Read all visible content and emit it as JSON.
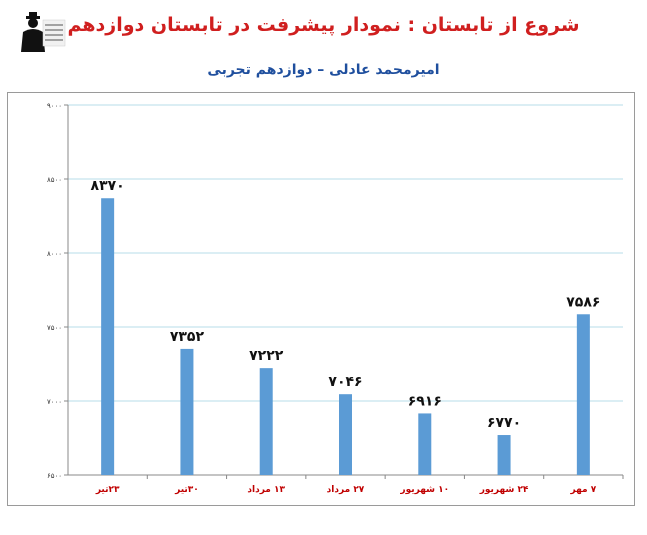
{
  "header": {
    "title": "شروع از تابستان : نمودار پیشرفت در تابستان دوازدهم",
    "subtitle": "امیرمحمد عادلی – دوازدهم تجربی",
    "logo_icon": "person-silhouette-logo"
  },
  "colors": {
    "title": "#d01f1f",
    "subtitle": "#1f4f9e",
    "bar": "#5b9bd5",
    "category_label": "#c00000",
    "grid": "#b7dde8"
  },
  "chart_data": {
    "type": "bar",
    "categories": [
      "۲۳تیر",
      "۳۰تیر",
      "۱۳ مرداد",
      "۲۷ مرداد",
      "۱۰ شهریور",
      "۲۴ شهریور",
      "۷ مهر"
    ],
    "values": [
      8370,
      7352,
      7222,
      7046,
      6916,
      6770,
      7586
    ],
    "value_labels": [
      "۸۳۷۰",
      "۷۳۵۲",
      "۷۲۲۲",
      "۷۰۴۶",
      "۶۹۱۶",
      "۶۷۷۰",
      "۷۵۸۶"
    ],
    "ylim": [
      6500,
      9000
    ],
    "yticks": [
      6500,
      7000,
      7500,
      8000,
      8500,
      9000
    ],
    "ytick_labels": [
      "۶۵۰۰",
      "۷۰۰۰",
      "۷۵۰۰",
      "۸۰۰۰",
      "۸۵۰۰",
      "۹۰۰۰"
    ],
    "grid": true,
    "legend": "none",
    "title": "",
    "xlabel": "",
    "ylabel": ""
  }
}
